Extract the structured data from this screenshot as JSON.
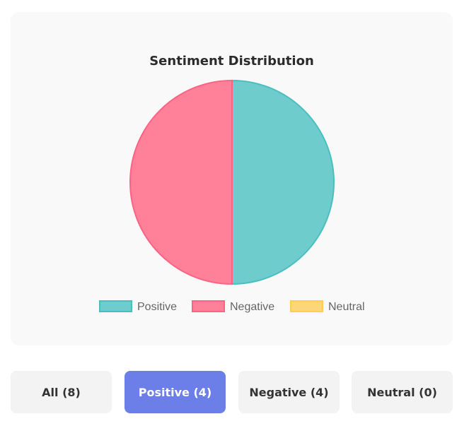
{
  "chart_data": {
    "type": "pie",
    "title": "Sentiment Distribution",
    "categories": [
      "Positive",
      "Negative",
      "Neutral"
    ],
    "values": [
      4,
      4,
      0
    ],
    "colors": {
      "Positive": {
        "fill": "#6ecccc",
        "stroke": "#4bbfbf"
      },
      "Negative": {
        "fill": "#ff8099",
        "stroke": "#ff6384"
      },
      "Neutral": {
        "fill": "#ffd57a",
        "stroke": "#ffcd56"
      }
    },
    "legend_position": "bottom"
  },
  "filters": {
    "active": "positive",
    "buttons": [
      {
        "id": "all",
        "label": "All (8)"
      },
      {
        "id": "positive",
        "label": "Positive (4)"
      },
      {
        "id": "negative",
        "label": "Negative (4)"
      },
      {
        "id": "neutral",
        "label": "Neutral (0)"
      }
    ]
  }
}
